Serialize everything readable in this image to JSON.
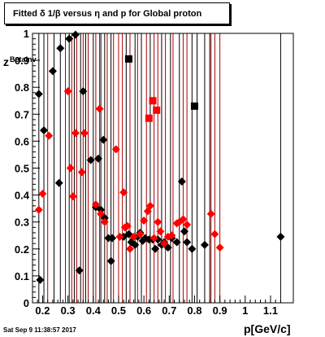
{
  "title": "Fitted δ 1/β versus η and p for Global proton",
  "ylabel": "z",
  "ylabel_sub": "Betainv",
  "xlabel": "p[GeV/c]",
  "timestamp": "Sat Sep  9 11:38:57 2017",
  "colors": {
    "black": "#000000",
    "red": "#ff0000",
    "darkred": "#aa0000"
  },
  "chart_data": {
    "type": "scatter",
    "title": "Fitted δ 1/β versus η and p for Global proton",
    "xlabel": "p[GeV/c]",
    "ylabel": "z",
    "xlim": [
      0.16,
      1.19
    ],
    "ylim": [
      0,
      1
    ],
    "xticks": [
      0.2,
      0.3,
      0.4,
      0.5,
      0.6,
      0.7,
      0.8,
      0.9,
      1,
      1.1
    ],
    "xtick_labels": [
      "0.2",
      "0.3",
      "0.4",
      "0.5",
      "0.6",
      "0.7",
      "0.8",
      "0.9",
      "1",
      "1.1"
    ],
    "yticks": [
      0,
      0.1,
      0.2,
      0.3,
      0.4,
      0.5,
      0.6,
      0.7,
      0.8,
      0.9,
      1
    ],
    "ytick_labels": [
      "0",
      "0.1",
      "0.2",
      "0.3",
      "0.4",
      "0.5",
      "0.6",
      "0.7",
      "0.8",
      "0.9",
      "1"
    ],
    "grid": false,
    "vertical_lines": {
      "black": [
        0.185,
        0.205,
        0.245,
        0.27,
        0.305,
        0.325,
        0.35,
        0.37,
        0.4,
        0.43,
        0.445,
        0.47,
        0.53,
        0.565,
        0.59,
        0.625,
        0.67,
        0.705,
        0.74,
        0.79,
        0.81,
        0.84,
        0.86,
        1.14
      ],
      "darkred": [
        0.22,
        0.29,
        0.315,
        0.335,
        0.36,
        0.38,
        0.41,
        0.425,
        0.455,
        0.48,
        0.5,
        0.515,
        0.545,
        0.575,
        0.61,
        0.64,
        0.655,
        0.685,
        0.715,
        0.755,
        0.77,
        0.865,
        0.88,
        0.9
      ]
    },
    "series": [
      {
        "color": "black",
        "marker": "diamond",
        "points": [
          [
            0.185,
            0.775
          ],
          [
            0.19,
            0.085
          ],
          [
            0.205,
            0.64
          ],
          [
            0.24,
            0.86
          ],
          [
            0.265,
            0.445
          ],
          [
            0.27,
            0.945
          ],
          [
            0.305,
            0.98
          ],
          [
            0.33,
            0.995
          ],
          [
            0.345,
            0.12
          ],
          [
            0.36,
            0.785
          ],
          [
            0.39,
            0.53
          ],
          [
            0.41,
            0.355
          ],
          [
            0.42,
            0.535
          ],
          [
            0.43,
            0.345
          ],
          [
            0.44,
            0.605
          ],
          [
            0.445,
            0.315
          ],
          [
            0.46,
            0.24
          ],
          [
            0.47,
            0.155
          ],
          [
            0.475,
            0.24
          ],
          [
            0.52,
            0.245
          ],
          [
            0.54,
            0.255
          ],
          [
            0.55,
            0.225
          ],
          [
            0.565,
            0.215
          ],
          [
            0.575,
            0.245
          ],
          [
            0.585,
            0.26
          ],
          [
            0.595,
            0.23
          ],
          [
            0.605,
            0.24
          ],
          [
            0.62,
            0.235
          ],
          [
            0.635,
            0.235
          ],
          [
            0.645,
            0.2
          ],
          [
            0.655,
            0.235
          ],
          [
            0.67,
            0.215
          ],
          [
            0.68,
            0.225
          ],
          [
            0.695,
            0.205
          ],
          [
            0.71,
            0.24
          ],
          [
            0.73,
            0.225
          ],
          [
            0.75,
            0.45
          ],
          [
            0.76,
            0.265
          ],
          [
            0.77,
            0.225
          ],
          [
            0.79,
            0.2
          ],
          [
            0.84,
            0.215
          ],
          [
            1.14,
            0.245
          ]
        ]
      },
      {
        "color": "black",
        "marker": "square",
        "points": [
          [
            0.54,
            0.905
          ],
          [
            0.8,
            0.73
          ]
        ]
      },
      {
        "color": "red",
        "marker": "diamond",
        "points": [
          [
            0.185,
            0.345
          ],
          [
            0.2,
            0.405
          ],
          [
            0.225,
            0.62
          ],
          [
            0.3,
            0.785
          ],
          [
            0.31,
            0.5
          ],
          [
            0.32,
            0.395
          ],
          [
            0.33,
            0.63
          ],
          [
            0.355,
            0.485
          ],
          [
            0.365,
            0.63
          ],
          [
            0.425,
            0.72
          ],
          [
            0.41,
            0.365
          ],
          [
            0.43,
            0.33
          ],
          [
            0.445,
            0.3
          ],
          [
            0.49,
            0.57
          ],
          [
            0.52,
            0.41
          ],
          [
            0.505,
            0.245
          ],
          [
            0.525,
            0.28
          ],
          [
            0.535,
            0.285
          ],
          [
            0.545,
            0.2
          ],
          [
            0.56,
            0.245
          ],
          [
            0.585,
            0.255
          ],
          [
            0.6,
            0.305
          ],
          [
            0.615,
            0.34
          ],
          [
            0.625,
            0.36
          ],
          [
            0.64,
            0.24
          ],
          [
            0.655,
            0.3
          ],
          [
            0.665,
            0.265
          ],
          [
            0.68,
            0.22
          ],
          [
            0.695,
            0.245
          ],
          [
            0.71,
            0.25
          ],
          [
            0.73,
            0.295
          ],
          [
            0.74,
            0.3
          ],
          [
            0.755,
            0.31
          ],
          [
            0.77,
            0.29
          ],
          [
            0.865,
            0.33
          ],
          [
            0.88,
            0.255
          ],
          [
            0.9,
            0.205
          ]
        ]
      },
      {
        "color": "red",
        "marker": "square",
        "points": [
          [
            0.62,
            0.685
          ],
          [
            0.635,
            0.75
          ],
          [
            0.65,
            0.715
          ]
        ]
      }
    ]
  }
}
